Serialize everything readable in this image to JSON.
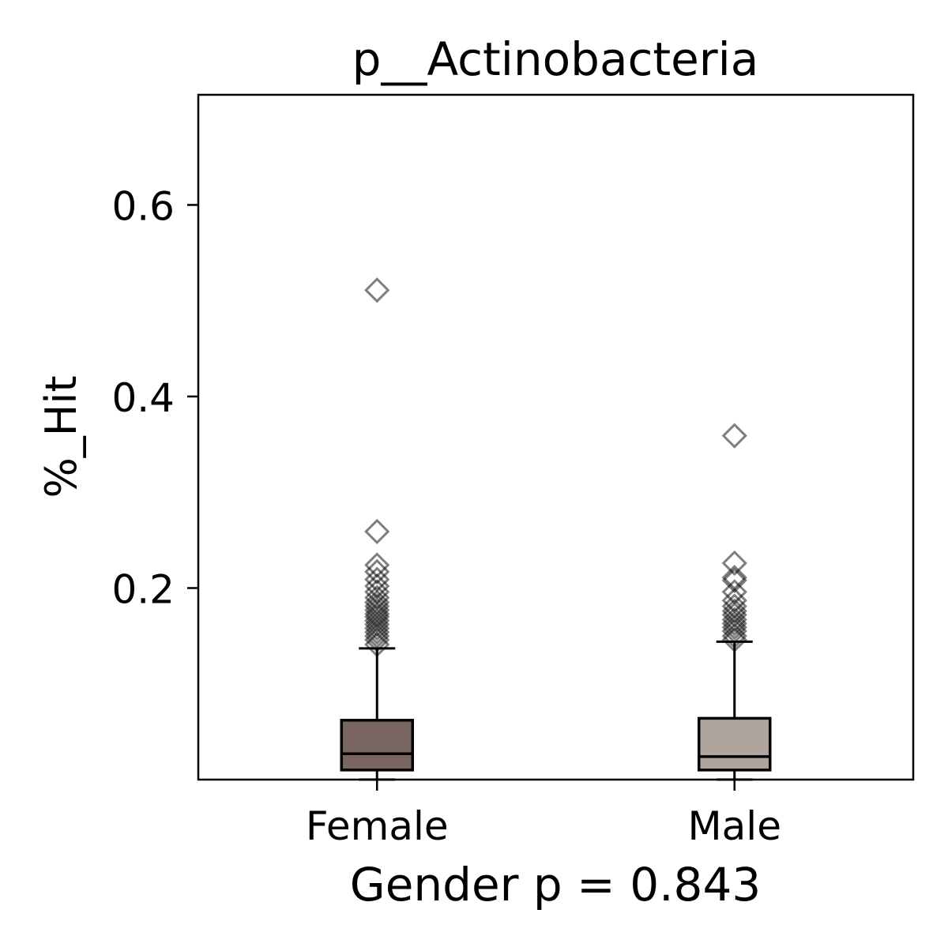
{
  "chart_data": {
    "type": "box",
    "title": "p__Actinobacteria",
    "xlabel": "Gender p = 0.843",
    "ylabel": "%_Hit",
    "ylim": [
      0.0,
      0.715
    ],
    "yticks": [
      0.2,
      0.4,
      0.6
    ],
    "ytick_labels": [
      "0.2",
      "0.4",
      "0.6"
    ],
    "grid": false,
    "legend": "none",
    "categories": [
      "Female",
      "Male"
    ],
    "boxes": [
      {
        "name": "Female",
        "color": "#7a6660",
        "whisker_low": 0.0,
        "q1": 0.01,
        "median": 0.027,
        "q3": 0.062,
        "whisker_high": 0.137,
        "outliers": [
          0.511,
          0.259,
          0.224,
          0.217,
          0.209,
          0.202,
          0.196,
          0.19,
          0.185,
          0.181,
          0.177,
          0.173,
          0.17,
          0.166,
          0.162,
          0.158,
          0.154,
          0.15,
          0.146,
          0.141
        ]
      },
      {
        "name": "Male",
        "color": "#b0a59e",
        "whisker_low": 0.0,
        "q1": 0.01,
        "median": 0.024,
        "q3": 0.064,
        "whisker_high": 0.144,
        "outliers": [
          0.359,
          0.226,
          0.211,
          0.208,
          0.196,
          0.187,
          0.181,
          0.176,
          0.172,
          0.167,
          0.163,
          0.159,
          0.155,
          0.15,
          0.146
        ]
      }
    ],
    "outlier_marker": "diamond",
    "outlier_color": "#000000"
  }
}
